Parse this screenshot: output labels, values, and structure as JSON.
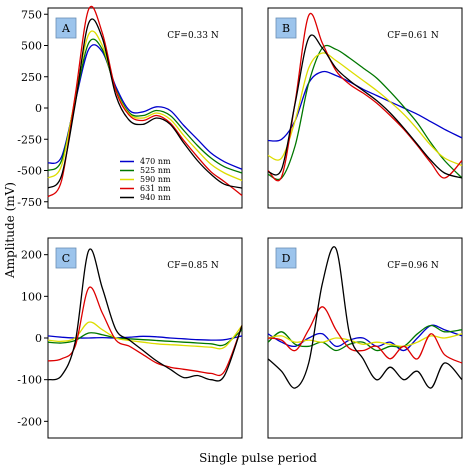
{
  "figure": {
    "ylabel": "Amplitude (mV)",
    "xlabel": "Single pulse period"
  },
  "chart_data": [
    {
      "type": "line",
      "panel": "A",
      "annotation": "CF=0.33 N",
      "ylim": [
        -800,
        800
      ],
      "yticks": [
        -750,
        -500,
        -250,
        0,
        250,
        500,
        750
      ],
      "ytick_labels": [
        "-750",
        "-500",
        "-250",
        "0",
        "250",
        "500",
        "750"
      ],
      "x": [
        0,
        0.07,
        0.14,
        0.21,
        0.28,
        0.35,
        0.42,
        0.49,
        0.56,
        0.63,
        0.7,
        0.77,
        0.84,
        0.91,
        1.0
      ],
      "legend": {
        "placement": "lower-left",
        "entries": [
          "470 nm",
          "525 nm",
          "590 nm",
          "631 nm",
          "940 nm"
        ]
      },
      "series": [
        {
          "name": "470 nm",
          "color": "#0000cc",
          "values": [
            -440,
            -390,
            50,
            470,
            450,
            170,
            -20,
            -30,
            10,
            -20,
            -140,
            -250,
            -360,
            -430,
            -490
          ]
        },
        {
          "name": "525 nm",
          "color": "#007700",
          "values": [
            -500,
            -420,
            60,
            520,
            470,
            150,
            -40,
            -60,
            -20,
            -60,
            -180,
            -300,
            -400,
            -470,
            -520
          ]
        },
        {
          "name": "590 nm",
          "color": "#dddd00",
          "values": [
            -560,
            -460,
            80,
            590,
            500,
            140,
            -50,
            -80,
            -40,
            -90,
            -220,
            -340,
            -450,
            -520,
            -580
          ]
        },
        {
          "name": "631 nm",
          "color": "#dd0000",
          "values": [
            -710,
            -580,
            100,
            790,
            600,
            140,
            -60,
            -100,
            -60,
            -120,
            -260,
            -390,
            -510,
            -590,
            -700
          ]
        },
        {
          "name": "940 nm",
          "color": "#000000",
          "values": [
            -640,
            -540,
            30,
            680,
            560,
            100,
            -100,
            -130,
            -80,
            -130,
            -280,
            -420,
            -530,
            -610,
            -640
          ]
        }
      ]
    },
    {
      "type": "line",
      "panel": "B",
      "annotation": "CF=0.61 N",
      "ylim": [
        -800,
        800
      ],
      "x": [
        0,
        0.07,
        0.14,
        0.21,
        0.28,
        0.35,
        0.42,
        0.49,
        0.56,
        0.63,
        0.7,
        0.77,
        0.84,
        0.91,
        1.0
      ],
      "series": [
        {
          "name": "470 nm",
          "color": "#0000cc",
          "values": [
            -260,
            -250,
            -100,
            200,
            290,
            260,
            210,
            150,
            100,
            50,
            0,
            -50,
            -110,
            -170,
            -240
          ]
        },
        {
          "name": "525 nm",
          "color": "#007700",
          "values": [
            -530,
            -560,
            -300,
            200,
            480,
            470,
            400,
            320,
            240,
            130,
            10,
            -120,
            -280,
            -420,
            -560
          ]
        },
        {
          "name": "590 nm",
          "color": "#dddd00",
          "values": [
            -380,
            -400,
            -100,
            320,
            440,
            380,
            300,
            220,
            140,
            50,
            -50,
            -170,
            -300,
            -400,
            -460
          ]
        },
        {
          "name": "631 nm",
          "color": "#dd0000",
          "values": [
            -500,
            -550,
            50,
            740,
            520,
            300,
            190,
            120,
            40,
            -60,
            -170,
            -300,
            -440,
            -560,
            -420
          ]
        },
        {
          "name": "940 nm",
          "color": "#000000",
          "values": [
            -510,
            -490,
            40,
            560,
            480,
            320,
            220,
            140,
            60,
            -40,
            -160,
            -290,
            -420,
            -520,
            -560
          ]
        }
      ]
    },
    {
      "type": "line",
      "panel": "C",
      "annotation": "CF=0.85 N",
      "ylim": [
        -240,
        240
      ],
      "yticks": [
        -200,
        -100,
        0,
        100,
        200
      ],
      "ytick_labels": [
        "-200",
        "-100",
        "0",
        "100",
        "200"
      ],
      "x": [
        0,
        0.07,
        0.14,
        0.21,
        0.28,
        0.35,
        0.42,
        0.49,
        0.56,
        0.63,
        0.7,
        0.77,
        0.84,
        0.91,
        1.0
      ],
      "series": [
        {
          "name": "470 nm",
          "color": "#0000cc",
          "values": [
            5,
            2,
            0,
            0,
            1,
            0,
            2,
            4,
            3,
            0,
            -2,
            -4,
            -5,
            -4,
            5
          ]
        },
        {
          "name": "525 nm",
          "color": "#007700",
          "values": [
            -10,
            -12,
            -6,
            12,
            8,
            0,
            -2,
            -4,
            -6,
            -8,
            -10,
            -12,
            -14,
            -16,
            20
          ]
        },
        {
          "name": "590 nm",
          "color": "#dddd00",
          "values": [
            -5,
            -8,
            0,
            38,
            20,
            0,
            -6,
            -10,
            -14,
            -16,
            -18,
            -20,
            -22,
            -22,
            30
          ]
        },
        {
          "name": "631 nm",
          "color": "#dd0000",
          "values": [
            -55,
            -50,
            -20,
            120,
            60,
            -5,
            -20,
            -40,
            -60,
            -70,
            -75,
            -80,
            -85,
            -80,
            30
          ]
        },
        {
          "name": "940 nm",
          "color": "#000000",
          "values": [
            -100,
            -90,
            -10,
            210,
            120,
            20,
            -5,
            -30,
            -55,
            -75,
            -95,
            -90,
            -100,
            -90,
            30
          ]
        }
      ]
    },
    {
      "type": "line",
      "panel": "D",
      "annotation": "CF=0.96 N",
      "ylim": [
        -240,
        240
      ],
      "x": [
        0,
        0.07,
        0.14,
        0.21,
        0.28,
        0.35,
        0.42,
        0.49,
        0.56,
        0.63,
        0.7,
        0.77,
        0.84,
        0.91,
        1.0
      ],
      "series": [
        {
          "name": "470 nm",
          "color": "#0000cc",
          "values": [
            10,
            -10,
            -20,
            0,
            10,
            -20,
            -5,
            0,
            -20,
            -10,
            -30,
            0,
            30,
            20,
            5
          ]
        },
        {
          "name": "525 nm",
          "color": "#007700",
          "values": [
            -10,
            15,
            -15,
            -20,
            -10,
            -30,
            -15,
            -10,
            -30,
            -20,
            -20,
            10,
            30,
            15,
            20
          ]
        },
        {
          "name": "590 nm",
          "color": "#dddd00",
          "values": [
            0,
            5,
            -10,
            -5,
            -10,
            0,
            -5,
            -15,
            -10,
            -15,
            -20,
            -10,
            5,
            0,
            10
          ]
        },
        {
          "name": "631 nm",
          "color": "#dd0000",
          "values": [
            0,
            -5,
            -30,
            20,
            75,
            20,
            -25,
            -30,
            -20,
            -50,
            -20,
            -50,
            10,
            -40,
            -60
          ]
        },
        {
          "name": "940 nm",
          "color": "#000000",
          "values": [
            -50,
            -80,
            -120,
            -60,
            130,
            215,
            10,
            -50,
            -100,
            -70,
            -100,
            -80,
            -120,
            -60,
            -100
          ]
        }
      ]
    }
  ]
}
